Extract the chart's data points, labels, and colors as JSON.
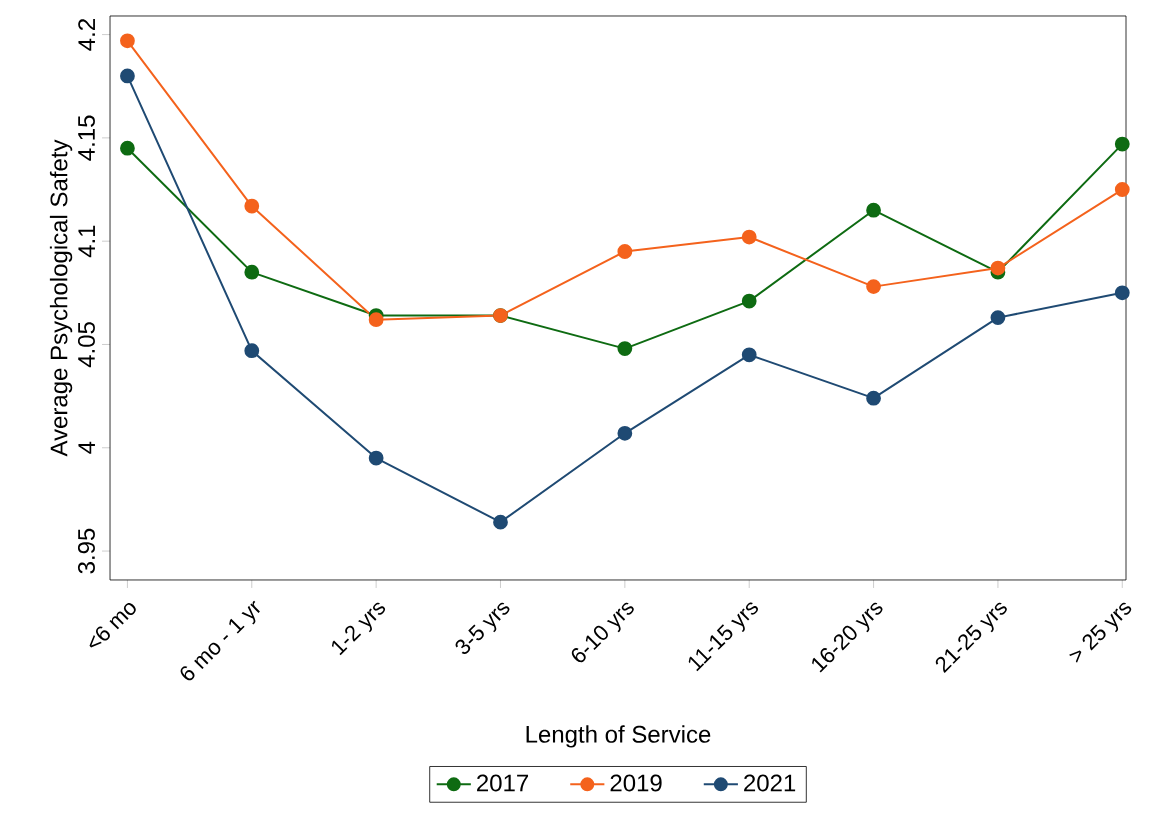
{
  "chart_data": {
    "type": "line",
    "xlabel": "Length of Service",
    "ylabel": "Average Psychological Safety",
    "categories": [
      "<6 mo",
      "6 mo - 1 yr",
      "1-2 yrs",
      "3-5 yrs",
      "6-10 yrs",
      "11-15 yrs",
      "16-20 yrs",
      "21-25 yrs",
      "> 25 yrs"
    ],
    "series": [
      {
        "name": "2017",
        "color": "#0e6b12",
        "values": [
          4.145,
          4.085,
          4.064,
          4.064,
          4.048,
          4.071,
          4.115,
          4.085,
          4.147
        ]
      },
      {
        "name": "2019",
        "color": "#f4621c",
        "values": [
          4.197,
          4.117,
          4.062,
          4.064,
          4.095,
          4.102,
          4.078,
          4.087,
          4.125
        ]
      },
      {
        "name": "2021",
        "color": "#1f4a73",
        "values": [
          4.18,
          4.047,
          3.995,
          3.964,
          4.007,
          4.045,
          4.024,
          4.063,
          4.075
        ]
      }
    ],
    "ylim": [
      3.936,
      4.209
    ],
    "yticks": [
      3.95,
      4,
      4.05,
      4.1,
      4.15,
      4.2
    ],
    "marker": "circle",
    "legend": "bottom"
  }
}
